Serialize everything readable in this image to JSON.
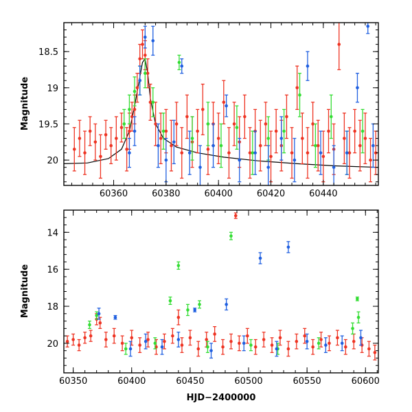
{
  "chart_data": [
    {
      "type": "scatter",
      "title": "",
      "xlabel": "",
      "ylabel": "Magnitude",
      "xlim": [
        60341,
        60461
      ],
      "ylim": [
        20.35,
        18.1
      ],
      "y_inverted": true,
      "x_ticks": [
        "60360",
        "60380",
        "60400",
        "60420",
        "60440"
      ],
      "x_tick_values": [
        60360,
        60380,
        60400,
        60420,
        60440
      ],
      "y_ticks": [
        "18.5",
        "19",
        "19.5",
        "20"
      ],
      "y_tick_values": [
        18.5,
        19,
        19.5,
        20
      ],
      "grid": false,
      "legend": "none",
      "series": [
        {
          "color": "#ee3322",
          "marker": "circle-errorbar",
          "points": [
            [
              60345,
              19.85,
              0.3
            ],
            [
              60347,
              19.7,
              0.25
            ],
            [
              60349,
              19.9,
              0.3
            ],
            [
              60351,
              19.6,
              0.2
            ],
            [
              60353,
              19.75,
              0.25
            ],
            [
              60355,
              19.95,
              0.3
            ],
            [
              60357,
              19.65,
              0.2
            ],
            [
              60359,
              19.8,
              0.25
            ],
            [
              60361,
              19.7,
              0.3
            ],
            [
              60363,
              19.55,
              0.2
            ],
            [
              60365,
              19.85,
              0.3
            ],
            [
              60366,
              19.6,
              0.25
            ],
            [
              60367,
              19.4,
              0.2
            ],
            [
              60368,
              19.3,
              0.2
            ],
            [
              60369,
              19.0,
              0.2
            ],
            [
              60370,
              18.6,
              0.2
            ],
            [
              60371,
              18.4,
              0.2
            ],
            [
              60372,
              18.55,
              0.2
            ],
            [
              60373,
              18.8,
              0.2
            ],
            [
              60374,
              19.2,
              0.25
            ],
            [
              60376,
              19.5,
              0.3
            ],
            [
              60378,
              19.7,
              0.35
            ],
            [
              60380,
              19.6,
              0.3
            ],
            [
              60382,
              19.8,
              0.35
            ],
            [
              60384,
              19.5,
              0.3
            ],
            [
              60386,
              19.9,
              0.35
            ],
            [
              60388,
              19.4,
              0.3
            ],
            [
              60390,
              19.75,
              0.35
            ],
            [
              60392,
              19.6,
              0.3
            ],
            [
              60394,
              19.3,
              0.35
            ],
            [
              60396,
              19.85,
              0.35
            ],
            [
              60398,
              19.5,
              0.3
            ],
            [
              60400,
              19.7,
              0.35
            ],
            [
              60402,
              19.2,
              0.3
            ],
            [
              60404,
              19.9,
              0.35
            ],
            [
              60406,
              19.5,
              0.3
            ],
            [
              60408,
              19.75,
              0.35
            ],
            [
              60410,
              19.4,
              0.3
            ],
            [
              60412,
              19.9,
              0.35
            ],
            [
              60414,
              19.6,
              0.3
            ],
            [
              60416,
              19.8,
              0.35
            ],
            [
              60418,
              19.5,
              0.3
            ],
            [
              60420,
              19.95,
              0.35
            ],
            [
              60422,
              19.6,
              0.3
            ],
            [
              60424,
              19.8,
              0.35
            ],
            [
              60426,
              19.4,
              0.3
            ],
            [
              60428,
              19.9,
              0.35
            ],
            [
              60430,
              19.0,
              0.3
            ],
            [
              60432,
              19.7,
              0.35
            ],
            [
              60434,
              19.9,
              0.35
            ],
            [
              60436,
              19.5,
              0.3
            ],
            [
              60438,
              19.8,
              0.35
            ],
            [
              60440,
              19.95,
              0.35
            ],
            [
              60442,
              19.6,
              0.3
            ],
            [
              60444,
              19.85,
              0.35
            ],
            [
              60446,
              18.4,
              0.35
            ],
            [
              60448,
              19.7,
              0.35
            ],
            [
              60450,
              19.9,
              0.35
            ],
            [
              60452,
              19.6,
              0.3
            ],
            [
              60454,
              19.8,
              0.35
            ],
            [
              60456,
              19.7,
              0.35
            ],
            [
              60458,
              20.0,
              0.3
            ],
            [
              60460,
              19.9,
              0.3
            ]
          ]
        },
        {
          "color": "#33dd33",
          "marker": "circle-errorbar",
          "points": [
            [
              60364,
              19.5,
              0.2
            ],
            [
              60366,
              19.3,
              0.2
            ],
            [
              60368,
              19.05,
              0.2
            ],
            [
              60370,
              18.9,
              0.2
            ],
            [
              60372,
              18.8,
              0.2
            ],
            [
              60375,
              19.2,
              0.2
            ],
            [
              60379,
              19.6,
              0.25
            ],
            [
              60385,
              18.65,
              0.1
            ],
            [
              60390,
              19.7,
              0.3
            ],
            [
              60396,
              19.5,
              0.3
            ],
            [
              60401,
              19.8,
              0.3
            ],
            [
              60407,
              19.55,
              0.3
            ],
            [
              60413,
              19.9,
              0.3
            ],
            [
              60419,
              19.7,
              0.3
            ],
            [
              60425,
              19.6,
              0.3
            ],
            [
              60431,
              19.1,
              0.3
            ],
            [
              60437,
              19.8,
              0.3
            ],
            [
              60443,
              19.4,
              0.3
            ],
            [
              60449,
              19.9,
              0.3
            ],
            [
              60455,
              19.6,
              0.3
            ]
          ]
        },
        {
          "color": "#1f5fe0",
          "marker": "circle-errorbar",
          "points": [
            [
              60366,
              19.9,
              0.2
            ],
            [
              60368,
              19.6,
              0.2
            ],
            [
              60370,
              18.9,
              0.2
            ],
            [
              60372,
              18.3,
              0.15
            ],
            [
              60375,
              18.35,
              0.2
            ],
            [
              60377,
              19.8,
              0.3
            ],
            [
              60380,
              20.0,
              0.3
            ],
            [
              60383,
              19.75,
              0.3
            ],
            [
              60386,
              18.7,
              0.1
            ],
            [
              60389,
              19.9,
              0.3
            ],
            [
              60393,
              20.1,
              0.3
            ],
            [
              60398,
              19.8,
              0.3
            ],
            [
              60403,
              19.25,
              0.15
            ],
            [
              60408,
              20.0,
              0.3
            ],
            [
              60414,
              19.9,
              0.3
            ],
            [
              60419,
              20.1,
              0.3
            ],
            [
              60424,
              19.7,
              0.3
            ],
            [
              60429,
              20.0,
              0.3
            ],
            [
              60434,
              18.7,
              0.2
            ],
            [
              60439,
              19.9,
              0.3
            ],
            [
              60444,
              20.1,
              0.3
            ],
            [
              60449,
              19.9,
              0.3
            ],
            [
              60453,
              19.0,
              0.2
            ],
            [
              60457,
              18.15,
              0.1
            ],
            [
              60459,
              19.8,
              0.3
            ]
          ]
        }
      ],
      "model_curve": [
        [
          60341,
          20.05
        ],
        [
          60350,
          20.04
        ],
        [
          60358,
          19.98
        ],
        [
          60363,
          19.85
        ],
        [
          60366,
          19.6
        ],
        [
          60368,
          19.25
        ],
        [
          60370,
          18.85
        ],
        [
          60371,
          18.65
        ],
        [
          60372,
          18.6
        ],
        [
          60373,
          18.8
        ],
        [
          60374,
          19.15
        ],
        [
          60376,
          19.5
        ],
        [
          60379,
          19.7
        ],
        [
          60384,
          19.82
        ],
        [
          60392,
          19.9
        ],
        [
          60402,
          19.96
        ],
        [
          60415,
          20.01
        ],
        [
          60430,
          20.05
        ],
        [
          60445,
          20.08
        ],
        [
          60461,
          20.1
        ]
      ]
    },
    {
      "type": "scatter",
      "title": "",
      "xlabel": "HJD−2400000",
      "ylabel": "Magnitude",
      "xlim": [
        60342,
        60611
      ],
      "ylim": [
        21.6,
        12.8
      ],
      "y_inverted": true,
      "x_ticks": [
        "60350",
        "60400",
        "60450",
        "60500",
        "60550",
        "60600"
      ],
      "x_tick_values": [
        60350,
        60400,
        60450,
        60500,
        60550,
        60600
      ],
      "y_ticks": [
        "14",
        "16",
        "18",
        "20"
      ],
      "y_tick_values": [
        14,
        16,
        18,
        20
      ],
      "grid": false,
      "legend": "none",
      "series": [
        {
          "color": "#ee3322",
          "marker": "circle-errorbar",
          "points": [
            [
              60345,
              19.9,
              0.3
            ],
            [
              60350,
              19.8,
              0.3
            ],
            [
              60355,
              20.1,
              0.3
            ],
            [
              60360,
              19.7,
              0.3
            ],
            [
              60365,
              19.6,
              0.3
            ],
            [
              60370,
              18.7,
              0.3
            ],
            [
              60373,
              18.9,
              0.3
            ],
            [
              60378,
              19.8,
              0.4
            ],
            [
              60385,
              19.6,
              0.4
            ],
            [
              60392,
              20.0,
              0.4
            ],
            [
              60400,
              19.7,
              0.4
            ],
            [
              60407,
              20.1,
              0.4
            ],
            [
              60414,
              19.8,
              0.4
            ],
            [
              60421,
              20.2,
              0.4
            ],
            [
              60428,
              19.9,
              0.4
            ],
            [
              60435,
              19.6,
              0.4
            ],
            [
              60440,
              18.6,
              0.4
            ],
            [
              60443,
              20.1,
              0.4
            ],
            [
              60450,
              19.7,
              0.4
            ],
            [
              60457,
              20.3,
              0.4
            ],
            [
              60464,
              19.8,
              0.4
            ],
            [
              60471,
              19.5,
              0.4
            ],
            [
              60478,
              20.2,
              0.4
            ],
            [
              60485,
              19.9,
              0.4
            ],
            [
              60489,
              13.1,
              0.15
            ],
            [
              60492,
              20.0,
              0.4
            ],
            [
              60499,
              19.6,
              0.4
            ],
            [
              60506,
              20.2,
              0.4
            ],
            [
              60513,
              19.8,
              0.4
            ],
            [
              60520,
              20.1,
              0.4
            ],
            [
              60527,
              19.7,
              0.4
            ],
            [
              60534,
              20.3,
              0.4
            ],
            [
              60541,
              19.9,
              0.4
            ],
            [
              60548,
              19.6,
              0.4
            ],
            [
              60555,
              20.2,
              0.4
            ],
            [
              60562,
              19.8,
              0.4
            ],
            [
              60569,
              20.0,
              0.4
            ],
            [
              60576,
              19.7,
              0.4
            ],
            [
              60583,
              20.2,
              0.4
            ],
            [
              60590,
              19.9,
              0.4
            ],
            [
              60597,
              20.1,
              0.4
            ],
            [
              60603,
              20.3,
              0.4
            ],
            [
              60608,
              20.5,
              0.4
            ]
          ]
        },
        {
          "color": "#33dd33",
          "marker": "circle-errorbar",
          "points": [
            [
              60364,
              19.0,
              0.2
            ],
            [
              60370,
              18.5,
              0.2
            ],
            [
              60395,
              20.3,
              0.3
            ],
            [
              60420,
              20.0,
              0.3
            ],
            [
              60433,
              17.7,
              0.2
            ],
            [
              60440,
              15.8,
              0.2
            ],
            [
              60448,
              18.2,
              0.3
            ],
            [
              60458,
              17.9,
              0.2
            ],
            [
              60465,
              20.2,
              0.3
            ],
            [
              60485,
              14.2,
              0.2
            ],
            [
              60502,
              20.1,
              0.3
            ],
            [
              60525,
              20.3,
              0.3
            ],
            [
              60560,
              20.0,
              0.3
            ],
            [
              60589,
              19.2,
              0.3
            ],
            [
              60593,
              17.6,
              0.1
            ],
            [
              60594,
              18.6,
              0.3
            ]
          ]
        },
        {
          "color": "#1f5fe0",
          "marker": "circle-errorbar",
          "points": [
            [
              60372,
              18.4,
              0.3
            ],
            [
              60386,
              18.6,
              0.1
            ],
            [
              60399,
              20.3,
              0.4
            ],
            [
              60412,
              19.9,
              0.4
            ],
            [
              60426,
              20.2,
              0.4
            ],
            [
              60440,
              19.8,
              0.4
            ],
            [
              60454,
              18.2,
              0.1
            ],
            [
              60468,
              20.4,
              0.4
            ],
            [
              60481,
              17.9,
              0.3
            ],
            [
              60496,
              20.0,
              0.4
            ],
            [
              60510,
              15.4,
              0.3
            ],
            [
              60524,
              20.3,
              0.4
            ],
            [
              60534,
              14.8,
              0.3
            ],
            [
              60550,
              19.9,
              0.4
            ],
            [
              60566,
              20.1,
              0.4
            ],
            [
              60580,
              20.0,
              0.4
            ],
            [
              60596,
              19.7,
              0.4
            ]
          ]
        }
      ]
    }
  ]
}
